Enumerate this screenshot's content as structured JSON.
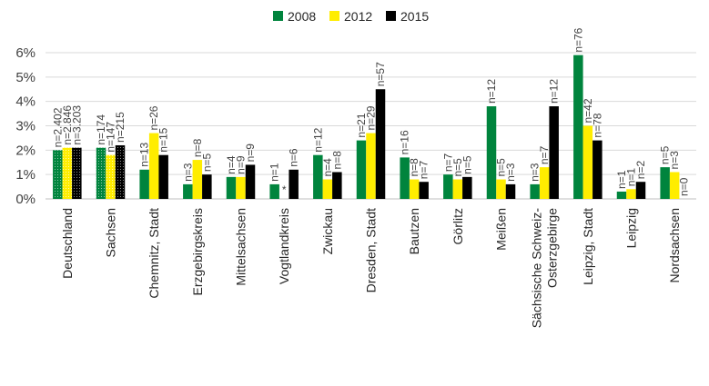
{
  "chart_data": {
    "type": "bar",
    "title": "",
    "xlabel": "",
    "ylabel": "",
    "ylim": [
      0,
      6
    ],
    "yticks": [
      "0%",
      "1%",
      "2%",
      "3%",
      "4%",
      "5%",
      "6%"
    ],
    "grid": true,
    "legend_position": "top",
    "categories": [
      "Deutschland",
      "Sachsen",
      "Chemnitz, Stadt",
      "Erzgebirgskreis",
      "Mittelsachsen",
      "Vogtlandkreis",
      "Zwickau",
      "Dresden, Stadt",
      "Bautzen",
      "Görlitz",
      "Meißen",
      "Sächsische Schweiz-\nOsterzgebirge",
      "Leipzig, Stadt",
      "Leipzig",
      "Nordsachsen"
    ],
    "series": [
      {
        "name": "2008",
        "color": "#00843d",
        "values": [
          2.0,
          2.1,
          1.2,
          0.6,
          0.9,
          0.6,
          1.8,
          2.4,
          1.7,
          1.0,
          3.8,
          0.6,
          5.9,
          0.3,
          1.3
        ],
        "n": [
          "n=2.402",
          "n=174",
          "n=13",
          "n=3",
          "n=4",
          "n=1",
          "n=12",
          "n=21",
          "n=16",
          "n=7",
          "n=12",
          "n=3",
          "n=76",
          "n=1",
          "n=5"
        ]
      },
      {
        "name": "2012",
        "color": "#ffed00",
        "values": [
          2.1,
          1.8,
          2.7,
          1.6,
          0.9,
          0,
          0.8,
          2.7,
          0.8,
          0.8,
          0.8,
          1.3,
          3.0,
          0.4,
          1.1
        ],
        "n": [
          "n=2.846",
          "n=147",
          "n=26",
          "n=8",
          "n=9",
          "*",
          "n=4",
          "n=29",
          "n=8",
          "n=5",
          "n=5",
          "n=7",
          "n=42",
          "n=1",
          "n=3"
        ]
      },
      {
        "name": "2015",
        "color": "#000000",
        "values": [
          2.1,
          2.2,
          1.8,
          1.0,
          1.4,
          1.2,
          1.1,
          4.5,
          0.7,
          0.9,
          0.6,
          3.8,
          2.4,
          0.7,
          0.0
        ],
        "n": [
          "n=3.203",
          "n=215",
          "n=15",
          "n=5",
          "n=9",
          "n=6",
          "n=8",
          "n=57",
          "n=7",
          "n=5",
          "n=3",
          "n=12",
          "n=78",
          "n=2",
          "n=0"
        ]
      }
    ],
    "hatched_categories": [
      "Deutschland",
      "Sachsen"
    ]
  }
}
